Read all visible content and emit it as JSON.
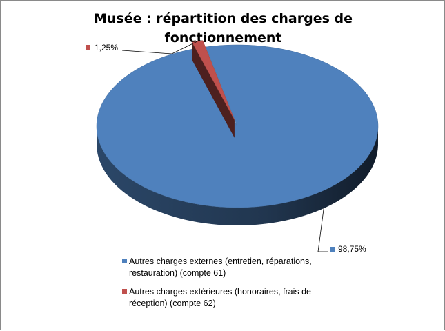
{
  "chart_data": {
    "type": "pie",
    "title": "Musée : répartition des charges de fonctionnement",
    "slices": [
      {
        "label": "Autres charges externes (entretien, réparations, restauration) (compte 61)",
        "value": 98.75,
        "data_label": "98,75%",
        "color": "#4f81bd"
      },
      {
        "label": "Autres charges extérieures (honoraires, frais de réception) (compte 62)",
        "value": 1.25,
        "data_label": "1,25%",
        "color": "#c0504d"
      }
    ],
    "legend_position": "bottom",
    "exploded": true,
    "three_d": true
  }
}
